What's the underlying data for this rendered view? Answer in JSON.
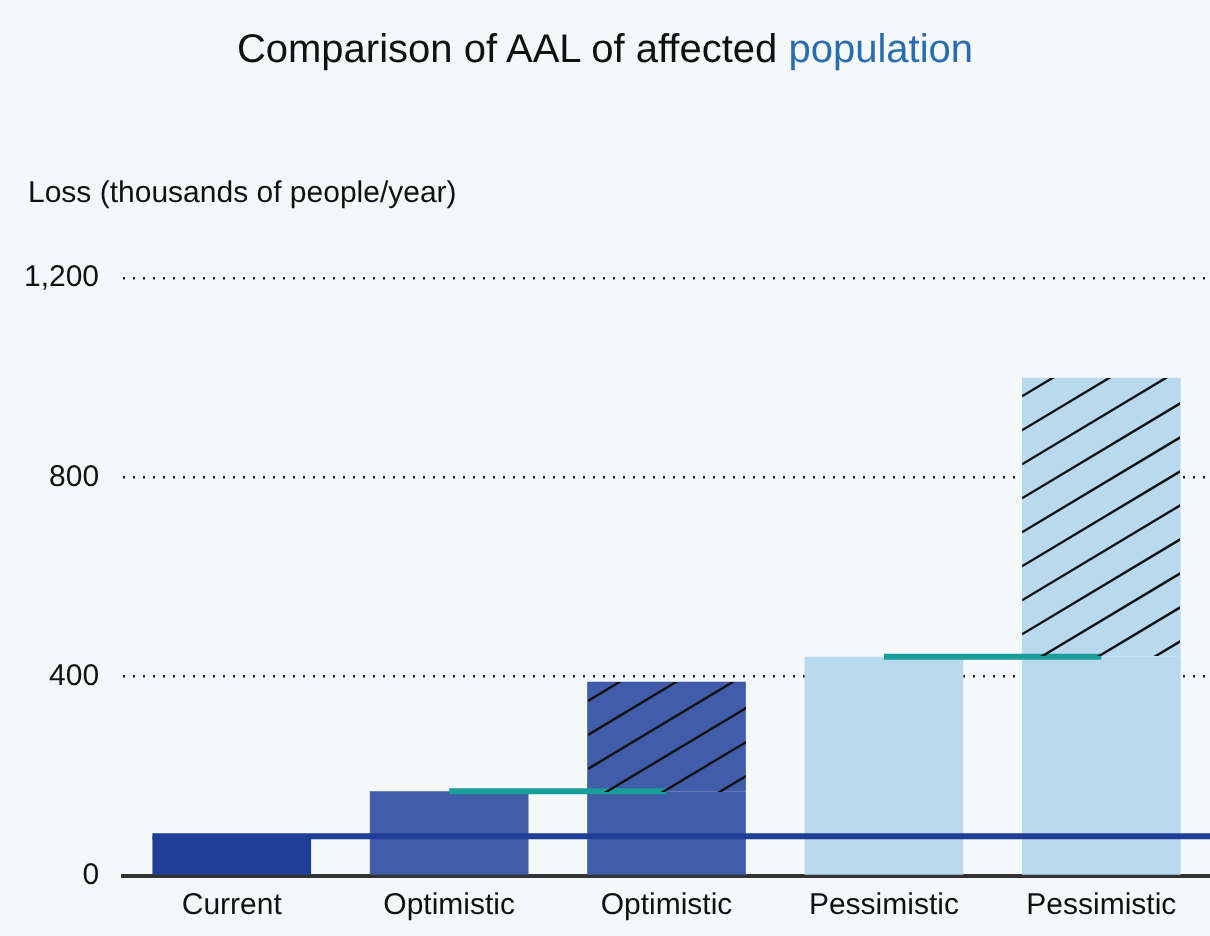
{
  "chart_data": {
    "type": "bar",
    "title": "Comparison of AAL of affected population",
    "ylabel": "Loss (thousands of people/year)",
    "categories": [
      "Current",
      "Optimistic",
      "Optimistic",
      "Pessimistic",
      "Pessimistic"
    ],
    "stacked": true,
    "series": [
      {
        "colors": [
          "#1f3f96",
          "#415ca9",
          "#415ca9",
          "#b9d9ee",
          "#b9d9ee"
        ],
        "values": [
          80,
          170,
          170,
          440,
          440
        ]
      },
      {
        "colors": [
          "#1f3f96",
          "#415ca9",
          "#415ca9",
          "#b9d9ee",
          "#b9d9ee"
        ],
        "values": [
          null,
          null,
          220,
          null,
          560
        ]
      },
      {
        "type": "line",
        "color": "#1a9e9a",
        "values": [
          null,
          170,
          170,
          null,
          null
        ]
      },
      {
        "type": "line",
        "color": "#1a9e9a",
        "values": [
          null,
          null,
          null,
          440,
          440
        ]
      }
    ],
    "ref_lines": [
      {
        "axis": "y",
        "value": 80,
        "color": "#1f3f96"
      }
    ],
    "ylim": [
      0,
      1200
    ],
    "yticks": [
      0,
      400,
      800,
      {
        "value": 1200,
        "label": "1,200"
      }
    ],
    "grid": "y",
    "legend": false,
    "marker": "none"
  }
}
